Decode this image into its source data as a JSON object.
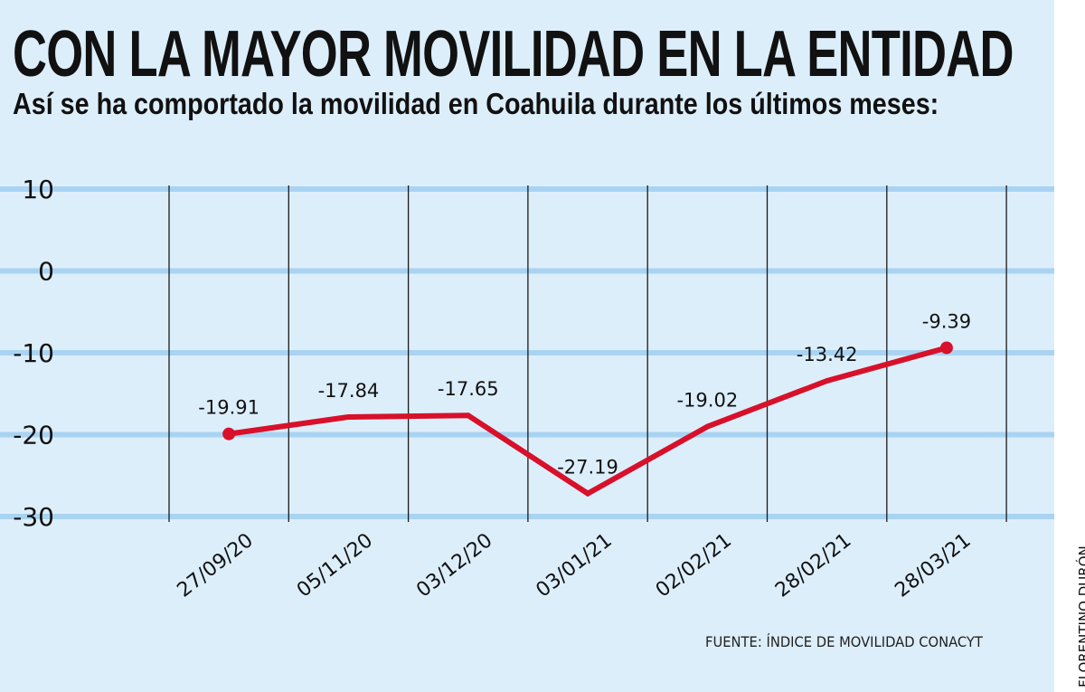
{
  "title": "CON LA MAYOR MOVILIDAD EN LA ENTIDAD",
  "subtitle": "Así se ha comportado la movilidad en Coahuila durante los últimos meses:",
  "source": "FUENTE: ÍNDICE DE MOVILIDAD CONACYT",
  "credit": "FLORENTINO DURÓN",
  "chart_data": {
    "type": "line",
    "categories": [
      "27/09/20",
      "05/11/20",
      "03/12/20",
      "03/01/21",
      "02/02/21",
      "28/02/21",
      "28/03/21"
    ],
    "values": [
      -19.91,
      -17.84,
      -17.65,
      -27.19,
      -19.02,
      -13.42,
      -9.39
    ],
    "data_labels": [
      "-19.91",
      "-17.84",
      "-17.65",
      "-27.19",
      "-19.02",
      "-13.42",
      "-9.39"
    ],
    "yticks": [
      "10",
      "0",
      "-10",
      "-20",
      "-30"
    ],
    "ylim": [
      -30,
      10
    ],
    "grid": true,
    "colors": {
      "line": "#d8102a",
      "background": "#ddeefb",
      "gridline": "#a9d3f2",
      "divider": "#1a1a1a"
    }
  }
}
